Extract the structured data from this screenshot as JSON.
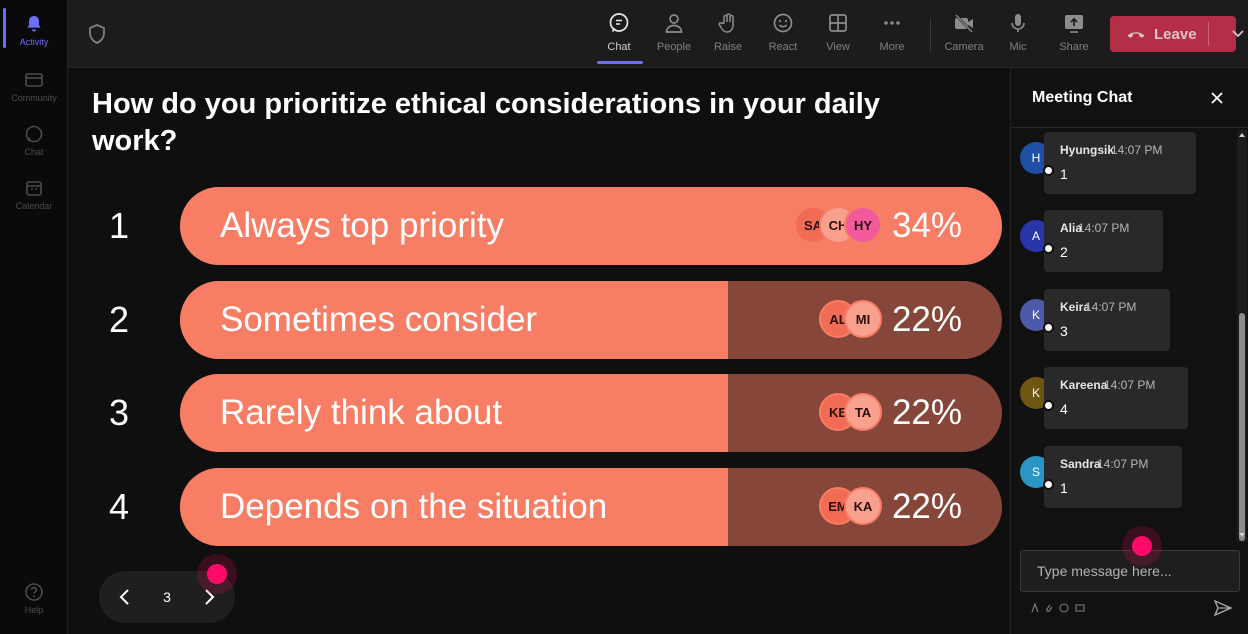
{
  "rail": {
    "items": [
      {
        "label": "Activity",
        "icon": "bell-icon",
        "active": true
      },
      {
        "label": "Community",
        "icon": "community-icon",
        "active": false
      },
      {
        "label": "Chat",
        "icon": "chat-icon",
        "active": false
      },
      {
        "label": "Calendar",
        "icon": "calendar-icon",
        "active": false
      },
      {
        "label": "Help",
        "icon": "help-icon",
        "active": false
      }
    ]
  },
  "toolbar": {
    "buttons": [
      {
        "label": "Chat",
        "icon": "chat-icon"
      },
      {
        "label": "People",
        "icon": "people-icon"
      },
      {
        "label": "Raise",
        "icon": "hand-icon"
      },
      {
        "label": "React",
        "icon": "smiley-icon"
      },
      {
        "label": "View",
        "icon": "grid-icon"
      },
      {
        "label": "More",
        "icon": "more-icon"
      },
      {
        "label": "Camera",
        "icon": "camera-off-icon"
      },
      {
        "label": "Mic",
        "icon": "mic-icon"
      },
      {
        "label": "Share",
        "icon": "share-icon"
      }
    ],
    "active": "Chat",
    "leave_label": "Leave",
    "leave_color": "#c4314b"
  },
  "poll": {
    "question": "How do you prioritize ethical considerations in your daily work?",
    "options": [
      {
        "number": "1",
        "label": "Always top priority",
        "percent": "34%",
        "fill_fraction": 1.0,
        "voters": [
          "SA",
          "CH",
          "HY"
        ]
      },
      {
        "number": "2",
        "label": "Sometimes consider",
        "percent": "22%",
        "fill_fraction": 0.667,
        "voters": [
          "AL",
          "MI"
        ]
      },
      {
        "number": "3",
        "label": "Rarely think about",
        "percent": "22%",
        "fill_fraction": 0.667,
        "voters": [
          "KE",
          "TA"
        ]
      },
      {
        "number": "4",
        "label": "Depends on the situation",
        "percent": "22%",
        "fill_fraction": 0.667,
        "voters": [
          "EM",
          "KA"
        ]
      }
    ],
    "fill_color": "#f77e64",
    "track_color": "#86463a",
    "page": "3"
  },
  "chat": {
    "title": "Meeting Chat",
    "messages": [
      {
        "initial": "H",
        "name": "Hyungsik",
        "time": "14:07 PM",
        "text": "1",
        "avatar_color": "#1e4fa3"
      },
      {
        "initial": "A",
        "name": "Alia",
        "time": "14:07 PM",
        "text": "2",
        "avatar_color": "#2a35a8"
      },
      {
        "initial": "K",
        "name": "Keira",
        "time": "14:07 PM",
        "text": "3",
        "avatar_color": "#4c5aa8"
      },
      {
        "initial": "K",
        "name": "Kareena",
        "time": "14:07 PM",
        "text": "4",
        "avatar_color": "#6e5511"
      },
      {
        "initial": "S",
        "name": "Sandra",
        "time": "14:07 PM",
        "text": "1",
        "avatar_color": "#2b96c4"
      }
    ],
    "composer_placeholder": "Type message here..."
  }
}
